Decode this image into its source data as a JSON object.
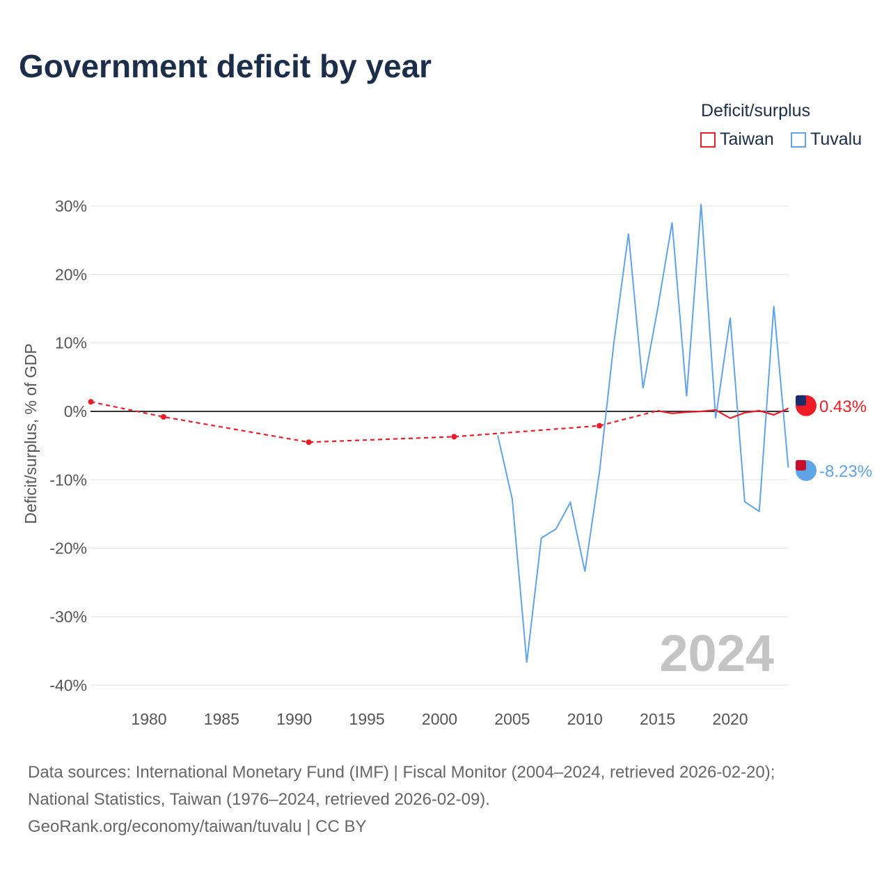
{
  "title": "Government deficit by year",
  "legend": {
    "title": "Deficit/surplus",
    "items": [
      {
        "label": "Taiwan",
        "color": "#ee1c25"
      },
      {
        "label": "Tuvalu",
        "color": "#5fa3e8"
      }
    ]
  },
  "year_watermark": "2024",
  "footer": {
    "line1": "Data sources: International Monetary Fund (IMF) | Fiscal Monitor (2004–2024, retrieved 2026-02-20);",
    "line2": "National Statistics, Taiwan (1976–2024, retrieved 2026-02-09).",
    "line3": "GeoRank.org/economy/taiwan/tuvalu | CC BY"
  },
  "chart_data": {
    "type": "line",
    "title": "Government deficit by year",
    "xlabel": "",
    "ylabel": "Deficit/surplus, % of GDP",
    "xlim": [
      1976,
      2024
    ],
    "ylim": [
      -40,
      30
    ],
    "x_ticks": [
      1980,
      1985,
      1990,
      1995,
      2000,
      2005,
      2010,
      2015,
      2020
    ],
    "y_ticks": [
      30,
      20,
      10,
      0,
      -10,
      -20,
      -30,
      -40
    ],
    "y_tick_labels": [
      "30%",
      "20%",
      "10%",
      "0%",
      "-10%",
      "-20%",
      "-30%",
      "-40%"
    ],
    "grid": true,
    "legend_position": "top-right",
    "series": [
      {
        "name": "Taiwan",
        "color": "#ee1c25",
        "end_label": "0.43%",
        "dashed_points": [
          [
            1976,
            1.4
          ],
          [
            1981,
            -0.8
          ],
          [
            1991,
            -4.5
          ],
          [
            2001,
            -3.7
          ],
          [
            2011,
            -2.1
          ],
          [
            2015,
            0.1
          ]
        ],
        "points": [
          [
            2015,
            0.1
          ],
          [
            2016,
            -0.3
          ],
          [
            2017,
            -0.1
          ],
          [
            2018,
            0.0
          ],
          [
            2019,
            0.2
          ],
          [
            2020,
            -1.0
          ],
          [
            2021,
            -0.2
          ],
          [
            2022,
            0.1
          ],
          [
            2023,
            -0.5
          ],
          [
            2024,
            0.43
          ]
        ]
      },
      {
        "name": "Tuvalu",
        "color": "#5fa3e8",
        "end_label": "-8.23%",
        "points": [
          [
            2004,
            -3.5
          ],
          [
            2005,
            -12.8
          ],
          [
            2006,
            -36.7
          ],
          [
            2007,
            -18.5
          ],
          [
            2008,
            -17.2
          ],
          [
            2009,
            -13.3
          ],
          [
            2010,
            -23.4
          ],
          [
            2011,
            -8.9
          ],
          [
            2012,
            10.1
          ],
          [
            2013,
            26.0
          ],
          [
            2014,
            3.4
          ],
          [
            2015,
            14.9
          ],
          [
            2016,
            27.6
          ],
          [
            2017,
            2.2
          ],
          [
            2018,
            30.3
          ],
          [
            2019,
            -1.0
          ],
          [
            2020,
            13.7
          ],
          [
            2021,
            -13.2
          ],
          [
            2022,
            -14.6
          ],
          [
            2023,
            15.4
          ],
          [
            2024,
            -8.23
          ]
        ]
      }
    ]
  }
}
